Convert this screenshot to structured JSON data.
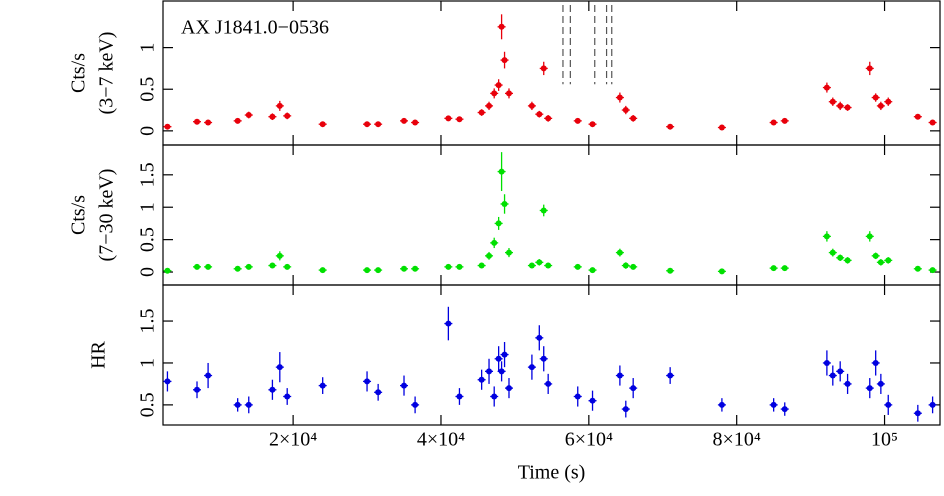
{
  "chart_data": [
    {
      "type": "scatter",
      "annotation": "AX J1841.0−0536",
      "ylabel": [
        "Cts/s",
        "(3−7 keV)"
      ],
      "color": "#e8000b",
      "ylim": [
        -0.17,
        1.56
      ],
      "yticks": [
        0,
        0.5,
        1
      ],
      "vlines": [
        56500,
        57500,
        60800,
        62400,
        63100
      ],
      "x": [
        3000,
        7000,
        8500,
        12500,
        14000,
        17200,
        18200,
        19200,
        24000,
        30000,
        31500,
        35000,
        36500,
        41000,
        42500,
        45500,
        46500,
        47200,
        47800,
        48200,
        48600,
        49200,
        52300,
        53300,
        53900,
        54500,
        58500,
        60500,
        64200,
        65000,
        66000,
        71000,
        78000,
        85000,
        86500,
        92200,
        93000,
        94000,
        95000,
        98000,
        98800,
        99500,
        100500,
        104500,
        106500
      ],
      "values": [
        0.05,
        0.11,
        0.1,
        0.12,
        0.19,
        0.17,
        0.3,
        0.18,
        0.08,
        0.08,
        0.08,
        0.12,
        0.1,
        0.15,
        0.14,
        0.22,
        0.3,
        0.45,
        0.55,
        1.25,
        0.85,
        0.45,
        0.3,
        0.2,
        0.75,
        0.15,
        0.12,
        0.08,
        0.4,
        0.25,
        0.15,
        0.05,
        0.04,
        0.1,
        0.12,
        0.52,
        0.35,
        0.3,
        0.28,
        0.75,
        0.4,
        0.3,
        0.35,
        0.17,
        0.1
      ],
      "errors": [
        0.03,
        0.02,
        0.02,
        0.03,
        0.04,
        0.04,
        0.06,
        0.04,
        0.02,
        0.02,
        0.02,
        0.03,
        0.03,
        0.03,
        0.03,
        0.04,
        0.05,
        0.06,
        0.07,
        0.15,
        0.1,
        0.06,
        0.05,
        0.04,
        0.08,
        0.04,
        0.03,
        0.02,
        0.06,
        0.05,
        0.04,
        0.02,
        0.02,
        0.03,
        0.03,
        0.06,
        0.05,
        0.05,
        0.04,
        0.08,
        0.05,
        0.05,
        0.05,
        0.03,
        0.03
      ]
    },
    {
      "type": "scatter",
      "ylabel": [
        "Cts/s",
        "(7−30 keV)"
      ],
      "color": "#00e000",
      "ylim": [
        -0.2,
        1.96
      ],
      "yticks": [
        0,
        0.5,
        1,
        1.5
      ],
      "x": [
        3000,
        7000,
        8500,
        12500,
        14000,
        17200,
        18200,
        19200,
        24000,
        30000,
        31500,
        35000,
        36500,
        41000,
        42500,
        45500,
        46500,
        47200,
        47800,
        48200,
        48600,
        49200,
        52300,
        53300,
        53900,
        54500,
        58500,
        60500,
        64200,
        65000,
        66000,
        71000,
        78000,
        85000,
        86500,
        92200,
        93000,
        94000,
        95000,
        98000,
        98800,
        99500,
        100500,
        104500,
        106500
      ],
      "values": [
        0.02,
        0.08,
        0.08,
        0.05,
        0.08,
        0.1,
        0.25,
        0.08,
        0.03,
        0.03,
        0.03,
        0.05,
        0.05,
        0.08,
        0.08,
        0.1,
        0.25,
        0.45,
        0.75,
        1.55,
        1.05,
        0.3,
        0.1,
        0.15,
        0.95,
        0.1,
        0.08,
        0.03,
        0.3,
        0.1,
        0.08,
        0.02,
        0.01,
        0.06,
        0.06,
        0.55,
        0.3,
        0.22,
        0.18,
        0.55,
        0.25,
        0.15,
        0.18,
        0.05,
        0.03
      ],
      "errors": [
        0.03,
        0.03,
        0.03,
        0.03,
        0.04,
        0.04,
        0.07,
        0.04,
        0.02,
        0.02,
        0.02,
        0.03,
        0.03,
        0.03,
        0.03,
        0.04,
        0.06,
        0.08,
        0.1,
        0.3,
        0.15,
        0.07,
        0.04,
        0.05,
        0.09,
        0.04,
        0.03,
        0.02,
        0.06,
        0.05,
        0.04,
        0.02,
        0.02,
        0.03,
        0.03,
        0.08,
        0.06,
        0.05,
        0.05,
        0.08,
        0.05,
        0.05,
        0.05,
        0.03,
        0.03
      ]
    },
    {
      "type": "scatter",
      "ylabel": [
        "HR"
      ],
      "color": "#0000e0",
      "xlabel": "Time (s)",
      "ylim": [
        0.26,
        1.93
      ],
      "yticks": [
        0.5,
        1,
        1.5
      ],
      "xlim": [
        2400,
        107500
      ],
      "xticks": [
        {
          "value": 20000,
          "label": "2×10⁴"
        },
        {
          "value": 40000,
          "label": "4×10⁴"
        },
        {
          "value": 60000,
          "label": "6×10⁴"
        },
        {
          "value": 80000,
          "label": "8×10⁴"
        },
        {
          "value": 100000,
          "label": "10⁵"
        }
      ],
      "x": [
        3000,
        7000,
        8500,
        12500,
        14000,
        17200,
        18200,
        19200,
        24000,
        30000,
        31500,
        35000,
        36500,
        41000,
        42500,
        45500,
        46500,
        47200,
        47800,
        48200,
        48600,
        49200,
        52300,
        53300,
        53900,
        54500,
        58500,
        60500,
        64200,
        65000,
        66000,
        71000,
        78000,
        85000,
        86500,
        92200,
        93000,
        94000,
        95000,
        98000,
        98800,
        99500,
        100500,
        104500,
        106500
      ],
      "values": [
        0.78,
        0.68,
        0.85,
        0.5,
        0.5,
        0.68,
        0.95,
        0.6,
        0.73,
        0.78,
        0.65,
        0.73,
        0.5,
        1.47,
        0.6,
        0.8,
        0.9,
        0.6,
        1.05,
        0.9,
        1.1,
        0.7,
        0.95,
        1.3,
        1.05,
        0.75,
        0.6,
        0.55,
        0.85,
        0.45,
        0.7,
        0.85,
        0.5,
        0.5,
        0.45,
        1.0,
        0.85,
        0.9,
        0.75,
        0.7,
        1.0,
        0.75,
        0.5,
        0.4,
        0.5
      ],
      "errors": [
        0.12,
        0.1,
        0.15,
        0.08,
        0.1,
        0.12,
        0.18,
        0.1,
        0.1,
        0.12,
        0.1,
        0.12,
        0.1,
        0.2,
        0.1,
        0.12,
        0.15,
        0.12,
        0.15,
        0.12,
        0.15,
        0.12,
        0.15,
        0.15,
        0.15,
        0.12,
        0.12,
        0.12,
        0.12,
        0.1,
        0.12,
        0.1,
        0.08,
        0.08,
        0.08,
        0.15,
        0.12,
        0.12,
        0.12,
        0.12,
        0.15,
        0.12,
        0.12,
        0.1,
        0.1
      ]
    }
  ]
}
